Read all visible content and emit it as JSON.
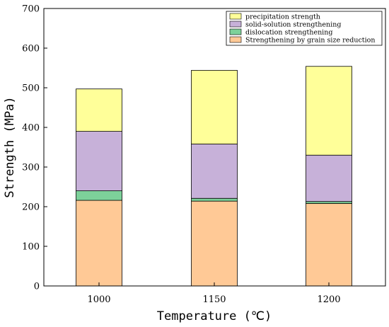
{
  "chart_data": {
    "type": "bar",
    "stacked": true,
    "categories": [
      "1000",
      "1150",
      "1200"
    ],
    "series": [
      {
        "name": "Strengthening by grain size reduction",
        "values": [
          216,
          214,
          208
        ],
        "color": "#ffc996"
      },
      {
        "name": "dislocation strengthening",
        "values": [
          24,
          7,
          5
        ],
        "color": "#7dd19a"
      },
      {
        "name": "solid-solution strengthening",
        "values": [
          150,
          137,
          117
        ],
        "color": "#c7b1d9"
      },
      {
        "name": "precipitation strength",
        "values": [
          107,
          186,
          224
        ],
        "color": "#ffff99"
      }
    ],
    "legend_order": [
      "precipitation strength",
      "solid-solution strengthening",
      "dislocation strengthening",
      "Strengthening by grain size reduction"
    ],
    "xlabel": "Temperature (℃)",
    "ylabel": "Strength (MPa)",
    "ylim": [
      0,
      700
    ],
    "yticks": [
      0,
      100,
      200,
      300,
      400,
      500,
      600,
      700
    ],
    "grid": false,
    "legend_position": "top-right"
  }
}
